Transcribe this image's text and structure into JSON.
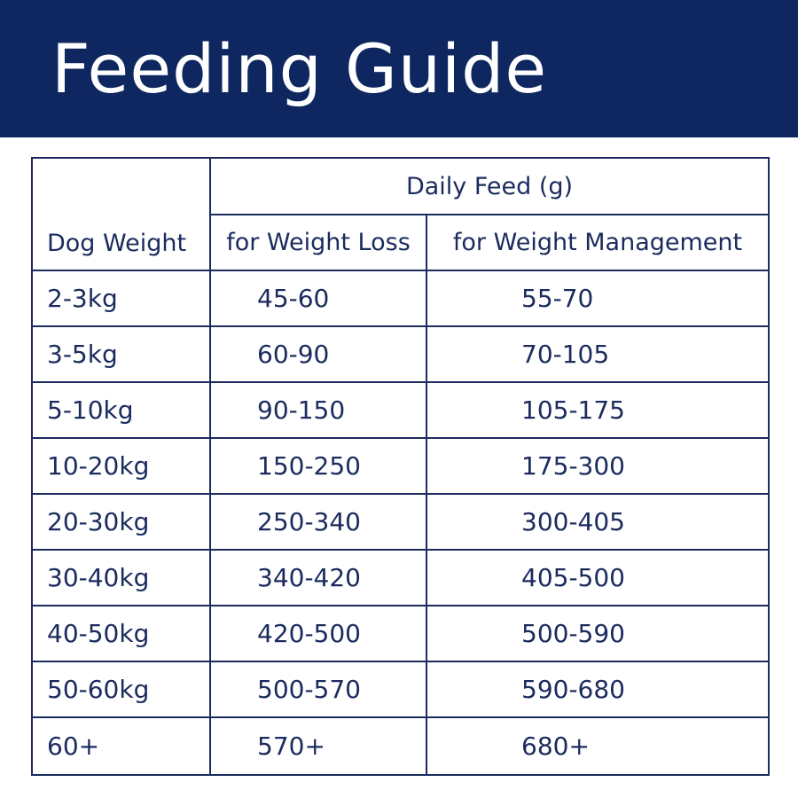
{
  "header": {
    "title": "Feeding Guide"
  },
  "table": {
    "first_column": "Dog Weight",
    "group_header": "Daily Feed (g)",
    "sub_headers": [
      "for Weight Loss",
      "for Weight Management"
    ],
    "rows": [
      [
        "2-3kg",
        "45-60",
        "55-70"
      ],
      [
        "3-5kg",
        "60-90",
        "70-105"
      ],
      [
        "5-10kg",
        "90-150",
        "105-175"
      ],
      [
        "10-20kg",
        "150-250",
        "175-300"
      ],
      [
        "20-30kg",
        "250-340",
        "300-405"
      ],
      [
        "30-40kg",
        "340-420",
        "405-500"
      ],
      [
        "40-50kg",
        "420-500",
        "500-590"
      ],
      [
        "50-60kg",
        "500-570",
        "590-680"
      ],
      [
        "60+",
        "570+",
        "680+"
      ]
    ]
  }
}
